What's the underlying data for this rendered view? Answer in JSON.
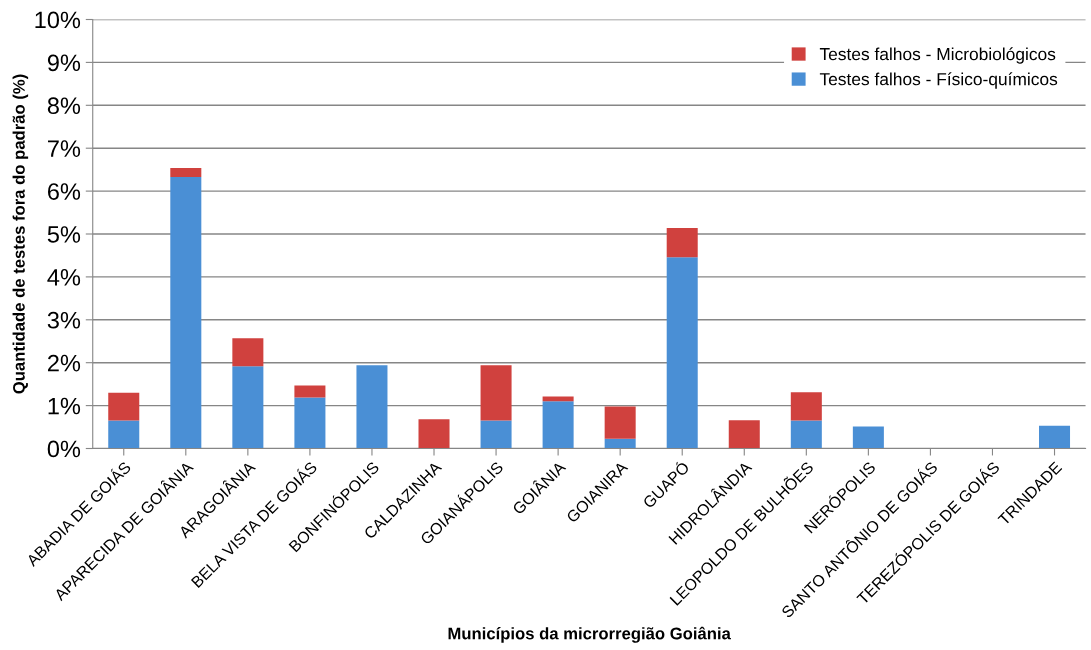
{
  "chart_data": {
    "type": "bar",
    "stacked": true,
    "xlabel": "Municípios da microrregião Goiânia",
    "ylabel": "Quantidade de testes fora do padrão (%)",
    "categories": [
      "ABADIA DE GOIÁS",
      "APARECIDA DE GOIÂNIA",
      "ARAGOIÂNIA",
      "BELA VISTA DE GOIÁS",
      "BONFINÓPOLIS",
      "CALDAZINHA",
      "GOIANÁPOLIS",
      "GOIÂNIA",
      "GOIANIRA",
      "GUAPÓ",
      "HIDROLÂNDIA",
      "LEOPOLDO DE BULHÕES",
      "NERÓPOLIS",
      "SANTO ANTÔNIO DE GOIÁS",
      "TEREZÓPOLIS DE GOIÁS",
      "TRINDADE"
    ],
    "series": [
      {
        "name": "Testes falhos - Físico-químicos",
        "color": "#4a8fd5",
        "values": [
          0.65,
          6.33,
          1.92,
          1.19,
          1.94,
          0,
          0.65,
          1.1,
          0.23,
          4.46,
          0,
          0.65,
          0.51,
          0,
          0,
          0.53
        ]
      },
      {
        "name": "Testes falhos - Microbiológicos",
        "color": "#d0413e",
        "values": [
          0.65,
          0.21,
          0.65,
          0.28,
          0,
          0.68,
          1.29,
          0.11,
          0.75,
          0.68,
          0.66,
          0.66,
          0,
          0,
          0,
          0
        ]
      }
    ],
    "ylim": [
      0,
      10
    ],
    "yticks": [
      {
        "value": 0,
        "label": "0%"
      },
      {
        "value": 1,
        "label": "1%"
      },
      {
        "value": 2,
        "label": "2%"
      },
      {
        "value": 3,
        "label": "3%"
      },
      {
        "value": 4,
        "label": "4%"
      },
      {
        "value": 5,
        "label": "5%"
      },
      {
        "value": 6,
        "label": "6%"
      },
      {
        "value": 7,
        "label": "7%"
      },
      {
        "value": 8,
        "label": "8%"
      },
      {
        "value": 9,
        "label": "9%"
      },
      {
        "value": 10,
        "label": "10%"
      }
    ],
    "grid": "y",
    "legend": "top right"
  }
}
